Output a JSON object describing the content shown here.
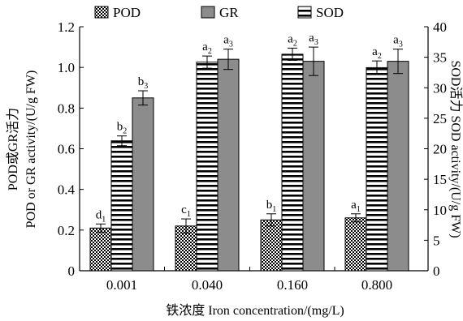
{
  "chart_data": {
    "type": "bar",
    "categories": [
      "0.001",
      "0.040",
      "0.160",
      "0.800"
    ],
    "xlabel": "铁浓度 Iron concentration/(mg/L)",
    "ylabel_left_line1": "POD或GR活力",
    "ylabel_left_line2": "POD or GR activity/(U/g FW)",
    "ylabel_right": "SOD活力 SOD activity/(U/g FW)",
    "ylim_left": [
      0,
      1.2
    ],
    "ylim_right": [
      0,
      40
    ],
    "yticks_left": [
      "0",
      "0.2",
      "0.4",
      "0.6",
      "0.8",
      "1.0",
      "1.2"
    ],
    "yticks_right": [
      "0",
      "5",
      "10",
      "15",
      "20",
      "25",
      "30",
      "35",
      "40"
    ],
    "legend_position": "top",
    "series": [
      {
        "name": "POD",
        "axis": "left",
        "pattern": "checker",
        "values": [
          0.21,
          0.22,
          0.25,
          0.26
        ],
        "errors": [
          0.02,
          0.035,
          0.03,
          0.02
        ],
        "labels": [
          [
            "d",
            "1"
          ],
          [
            "c",
            "1"
          ],
          [
            "b",
            "1"
          ],
          [
            "a",
            "1"
          ]
        ]
      },
      {
        "name": "SOD",
        "axis": "right",
        "pattern": "hstripe",
        "values": [
          21.3,
          34.2,
          35.5,
          33.3
        ],
        "errors": [
          0.8,
          1.0,
          1.0,
          1.1
        ],
        "labels": [
          [
            "b",
            "2"
          ],
          [
            "a",
            "2"
          ],
          [
            "a",
            "2"
          ],
          [
            "a",
            "2"
          ]
        ]
      },
      {
        "name": "GR",
        "axis": "left",
        "pattern": "solid",
        "color": "#8c8c8c",
        "values": [
          0.85,
          1.04,
          1.03,
          1.03
        ],
        "errors": [
          0.035,
          0.05,
          0.07,
          0.06
        ],
        "labels": [
          [
            "b",
            "3"
          ],
          [
            "a",
            "3"
          ],
          [
            "a",
            "3"
          ],
          [
            "a",
            "3"
          ]
        ]
      }
    ],
    "legend_order": [
      "POD",
      "GR",
      "SOD"
    ]
  }
}
